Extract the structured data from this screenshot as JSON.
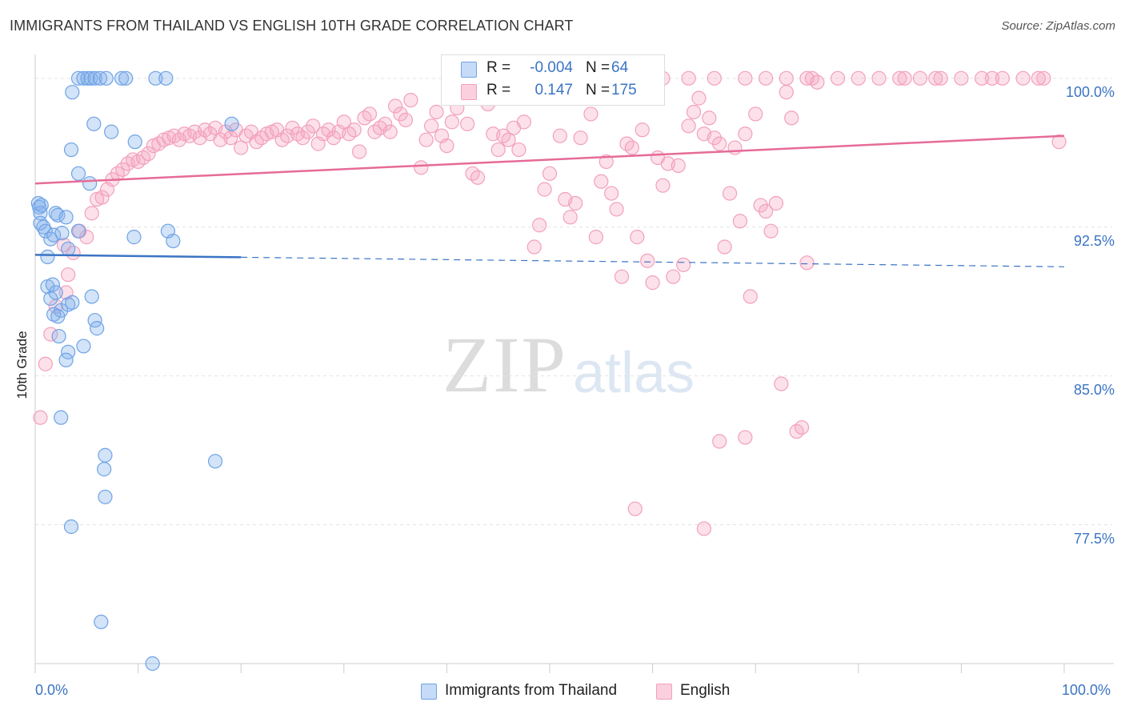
{
  "header": {
    "title": "IMMIGRANTS FROM THAILAND VS ENGLISH 10TH GRADE CORRELATION CHART",
    "source": "Source: ZipAtlas.com"
  },
  "watermark": {
    "zip": "ZIP",
    "atlas": "atlas"
  },
  "legend": {
    "r_label": "R =",
    "n_label": "N =",
    "series": [
      {
        "name": "Immigrants from Thailand",
        "r": "-0.004",
        "n": "64",
        "color": "#6fa3e6"
      },
      {
        "name": "English",
        "r": "0.147",
        "n": "175",
        "color": "#f2a0bb"
      }
    ]
  },
  "chart_data": {
    "type": "scatter",
    "title": "IMMIGRANTS FROM THAILAND VS ENGLISH 10TH GRADE CORRELATION CHART",
    "xlabel": "",
    "ylabel": "10th Grade",
    "xlim": [
      0,
      100
    ],
    "ylim": [
      70.5,
      100.8
    ],
    "x_tick_labels": [
      "0.0%",
      "100.0%"
    ],
    "y_ticks": [
      77.5,
      85.0,
      92.5,
      100.0
    ],
    "y_tick_labels": [
      "77.5%",
      "85.0%",
      "92.5%",
      "100.0%"
    ],
    "colors": {
      "blue": "#6fa3e6",
      "pink": "#f2a0bb",
      "blue_line": "#3b74c4",
      "pink_line": "#e66b98"
    },
    "series": [
      {
        "name": "Immigrants from Thailand",
        "r": -0.004,
        "n": 64,
        "trend": {
          "x": [
            0,
            100
          ],
          "y": [
            91.1,
            90.5
          ],
          "solid_until": 20
        },
        "points": [
          [
            0.3,
            93.7
          ],
          [
            0.4,
            93.5
          ],
          [
            0.5,
            93.2
          ],
          [
            0.6,
            93.6
          ],
          [
            0.5,
            92.7
          ],
          [
            0.8,
            92.5
          ],
          [
            1.0,
            92.3
          ],
          [
            1.2,
            91.0
          ],
          [
            1.5,
            91.9
          ],
          [
            1.8,
            92.1
          ],
          [
            2.0,
            93.2
          ],
          [
            2.2,
            93.1
          ],
          [
            2.6,
            92.2
          ],
          [
            3.0,
            93.0
          ],
          [
            3.2,
            91.4
          ],
          [
            4.2,
            92.3
          ],
          [
            1.2,
            89.5
          ],
          [
            1.7,
            89.6
          ],
          [
            1.5,
            88.9
          ],
          [
            2.0,
            89.2
          ],
          [
            2.5,
            88.3
          ],
          [
            3.2,
            88.6
          ],
          [
            3.6,
            88.7
          ],
          [
            1.8,
            88.1
          ],
          [
            2.2,
            88.0
          ],
          [
            5.5,
            89.0
          ],
          [
            5.8,
            87.8
          ],
          [
            6.0,
            87.4
          ],
          [
            2.3,
            87.0
          ],
          [
            3.2,
            86.2
          ],
          [
            4.7,
            86.5
          ],
          [
            3.0,
            85.8
          ],
          [
            2.5,
            82.9
          ],
          [
            6.8,
            81.0
          ],
          [
            6.7,
            80.3
          ],
          [
            6.8,
            78.9
          ],
          [
            3.5,
            77.4
          ],
          [
            6.4,
            72.6
          ],
          [
            11.4,
            70.5
          ],
          [
            17.5,
            80.7
          ],
          [
            8.4,
            100
          ],
          [
            4.2,
            100
          ],
          [
            4.7,
            100
          ],
          [
            5.1,
            100
          ],
          [
            5.4,
            100
          ],
          [
            5.8,
            100
          ],
          [
            6.3,
            100
          ],
          [
            6.9,
            100
          ],
          [
            8.8,
            100
          ],
          [
            11.7,
            100
          ],
          [
            12.7,
            100
          ],
          [
            3.6,
            99.3
          ],
          [
            5.7,
            97.7
          ],
          [
            7.4,
            97.3
          ],
          [
            19.1,
            97.7
          ],
          [
            9.7,
            96.8
          ],
          [
            3.5,
            96.4
          ],
          [
            4.2,
            95.2
          ],
          [
            5.3,
            94.7
          ],
          [
            12.9,
            92.3
          ],
          [
            13.4,
            91.8
          ],
          [
            9.6,
            92.0
          ]
        ]
      },
      {
        "name": "English",
        "r": 0.147,
        "n": 175,
        "trend": {
          "x": [
            0,
            100
          ],
          "y": [
            94.7,
            97.1
          ]
        },
        "points": [
          [
            0.5,
            82.9
          ],
          [
            1.0,
            85.6
          ],
          [
            1.5,
            87.1
          ],
          [
            2.0,
            88.5
          ],
          [
            3.0,
            89.2
          ],
          [
            3.2,
            90.1
          ],
          [
            3.7,
            91.2
          ],
          [
            2.8,
            91.6
          ],
          [
            4.3,
            92.3
          ],
          [
            5.0,
            92.0
          ],
          [
            5.5,
            93.2
          ],
          [
            6.0,
            93.9
          ],
          [
            6.5,
            94.0
          ],
          [
            7.0,
            94.4
          ],
          [
            7.5,
            94.9
          ],
          [
            8.0,
            95.2
          ],
          [
            8.5,
            95.4
          ],
          [
            9.0,
            95.7
          ],
          [
            9.5,
            95.9
          ],
          [
            10.0,
            95.8
          ],
          [
            10.5,
            96.0
          ],
          [
            11.0,
            96.2
          ],
          [
            11.5,
            96.6
          ],
          [
            12.0,
            96.7
          ],
          [
            12.5,
            96.9
          ],
          [
            13.0,
            97.0
          ],
          [
            13.5,
            97.1
          ],
          [
            14.0,
            96.9
          ],
          [
            14.5,
            97.2
          ],
          [
            15.0,
            97.1
          ],
          [
            15.5,
            97.3
          ],
          [
            16.0,
            97.0
          ],
          [
            16.5,
            97.4
          ],
          [
            17.0,
            97.2
          ],
          [
            17.5,
            97.5
          ],
          [
            18.0,
            96.9
          ],
          [
            18.5,
            97.3
          ],
          [
            19.0,
            97.0
          ],
          [
            19.5,
            97.4
          ],
          [
            20.0,
            96.5
          ],
          [
            20.5,
            97.1
          ],
          [
            21.0,
            97.3
          ],
          [
            21.5,
            96.8
          ],
          [
            22.0,
            97.0
          ],
          [
            22.5,
            97.2
          ],
          [
            23.0,
            97.3
          ],
          [
            23.5,
            97.4
          ],
          [
            24.0,
            96.9
          ],
          [
            24.5,
            97.1
          ],
          [
            25.0,
            97.5
          ],
          [
            25.5,
            97.2
          ],
          [
            26.0,
            97.0
          ],
          [
            26.5,
            97.3
          ],
          [
            27.0,
            97.6
          ],
          [
            27.5,
            96.7
          ],
          [
            28.0,
            97.2
          ],
          [
            28.5,
            97.4
          ],
          [
            29.0,
            97.0
          ],
          [
            29.5,
            97.3
          ],
          [
            30.0,
            97.8
          ],
          [
            30.5,
            97.2
          ],
          [
            31.0,
            97.4
          ],
          [
            31.5,
            96.3
          ],
          [
            32.0,
            98.0
          ],
          [
            32.5,
            98.2
          ],
          [
            33.0,
            97.3
          ],
          [
            33.5,
            97.5
          ],
          [
            34.0,
            97.7
          ],
          [
            34.5,
            97.3
          ],
          [
            35.0,
            98.6
          ],
          [
            35.5,
            98.2
          ],
          [
            36.0,
            97.9
          ],
          [
            36.5,
            98.9
          ],
          [
            37.5,
            95.5
          ],
          [
            38.0,
            96.9
          ],
          [
            38.5,
            97.6
          ],
          [
            39.0,
            98.3
          ],
          [
            39.5,
            97.1
          ],
          [
            40.0,
            96.6
          ],
          [
            40.5,
            97.8
          ],
          [
            41.0,
            98.5
          ],
          [
            42.0,
            97.7
          ],
          [
            42.5,
            95.2
          ],
          [
            43.0,
            95.0
          ],
          [
            43.5,
            99.2
          ],
          [
            44.0,
            98.7
          ],
          [
            44.5,
            97.2
          ],
          [
            45.0,
            96.4
          ],
          [
            45.5,
            97.1
          ],
          [
            46.0,
            96.9
          ],
          [
            46.5,
            97.5
          ],
          [
            47.0,
            96.4
          ],
          [
            47.5,
            97.8
          ],
          [
            48.0,
            99.4
          ],
          [
            48.5,
            91.5
          ],
          [
            49.0,
            92.6
          ],
          [
            49.5,
            94.4
          ],
          [
            50.0,
            95.2
          ],
          [
            50.5,
            99.0
          ],
          [
            51.0,
            97.1
          ],
          [
            51.5,
            93.9
          ],
          [
            52.0,
            93.0
          ],
          [
            52.5,
            93.7
          ],
          [
            53.0,
            97.0
          ],
          [
            53.5,
            99.2
          ],
          [
            54.0,
            98.2
          ],
          [
            54.5,
            92.0
          ],
          [
            55.0,
            94.8
          ],
          [
            55.5,
            95.8
          ],
          [
            56.0,
            94.2
          ],
          [
            56.5,
            93.4
          ],
          [
            57.0,
            90.0
          ],
          [
            57.5,
            96.7
          ],
          [
            58.0,
            96.5
          ],
          [
            58.5,
            92.0
          ],
          [
            59.0,
            97.4
          ],
          [
            59.5,
            90.8
          ],
          [
            60.0,
            89.7
          ],
          [
            60.5,
            96.0
          ],
          [
            61.0,
            94.6
          ],
          [
            61.5,
            95.7
          ],
          [
            62.0,
            90.0
          ],
          [
            62.5,
            95.6
          ],
          [
            63.0,
            90.6
          ],
          [
            63.5,
            97.6
          ],
          [
            64.0,
            98.3
          ],
          [
            64.5,
            99.0
          ],
          [
            65.0,
            97.2
          ],
          [
            65.5,
            98.0
          ],
          [
            66.0,
            97.0
          ],
          [
            66.5,
            96.7
          ],
          [
            67.0,
            91.5
          ],
          [
            67.5,
            94.2
          ],
          [
            68.0,
            96.5
          ],
          [
            68.5,
            92.8
          ],
          [
            69.0,
            97.2
          ],
          [
            69.5,
            89.0
          ],
          [
            70.0,
            98.2
          ],
          [
            70.5,
            93.6
          ],
          [
            71.0,
            93.3
          ],
          [
            71.5,
            92.3
          ],
          [
            72.0,
            93.7
          ],
          [
            72.5,
            84.6
          ],
          [
            73.0,
            99.3
          ],
          [
            73.5,
            98.0
          ],
          [
            74.0,
            82.2
          ],
          [
            74.5,
            82.4
          ],
          [
            75.0,
            90.7
          ],
          [
            75.5,
            100
          ],
          [
            76.0,
            99.8
          ],
          [
            65.0,
            77.3
          ],
          [
            58.3,
            78.3
          ],
          [
            66.5,
            81.7
          ],
          [
            69.0,
            81.9
          ],
          [
            54.5,
            100
          ],
          [
            57.0,
            100
          ],
          [
            61.0,
            100
          ],
          [
            63.5,
            100
          ],
          [
            66.0,
            100
          ],
          [
            69.0,
            100
          ],
          [
            71.0,
            100
          ],
          [
            73.0,
            100
          ],
          [
            75.0,
            100
          ],
          [
            78.0,
            100
          ],
          [
            80.0,
            100
          ],
          [
            82.0,
            100
          ],
          [
            84.0,
            100
          ],
          [
            86.0,
            100
          ],
          [
            88.0,
            100
          ],
          [
            90.0,
            100
          ],
          [
            92.0,
            100
          ],
          [
            94.0,
            100
          ],
          [
            96.0,
            100
          ],
          [
            98.0,
            100
          ],
          [
            99.5,
            96.8
          ],
          [
            84.5,
            100
          ],
          [
            87.5,
            100
          ],
          [
            93.0,
            100
          ],
          [
            97.5,
            100
          ]
        ]
      }
    ]
  }
}
